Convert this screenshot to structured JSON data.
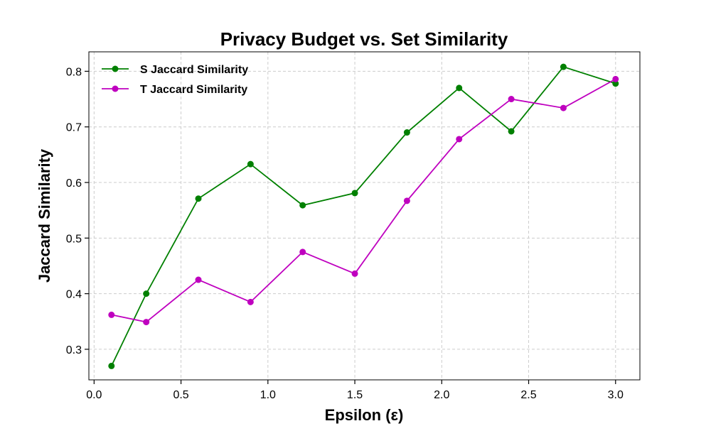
{
  "chart_data": {
    "type": "line",
    "title": "Privacy Budget vs. Set Similarity",
    "xlabel": "Epsilon (ε)",
    "ylabel": "Jaccard Similarity",
    "x": [
      0.1,
      0.3,
      0.6,
      0.9,
      1.2,
      1.5,
      1.8,
      2.1,
      2.4,
      2.7,
      3.0
    ],
    "xlim": [
      -0.03,
      3.14
    ],
    "ylim": [
      0.245,
      0.835
    ],
    "xticks": [
      0.0,
      0.5,
      1.0,
      1.5,
      2.0,
      2.5,
      3.0
    ],
    "xtick_labels": [
      "0.0",
      "0.5",
      "1.0",
      "1.5",
      "2.0",
      "2.5",
      "3.0"
    ],
    "yticks": [
      0.3,
      0.4,
      0.5,
      0.6,
      0.7,
      0.8
    ],
    "ytick_labels": [
      "0.3",
      "0.4",
      "0.5",
      "0.6",
      "0.7",
      "0.8"
    ],
    "grid": true,
    "legend_position": "top-left",
    "series": [
      {
        "name": "S Jaccard Similarity",
        "color": "#008000",
        "values": [
          0.27,
          0.4,
          0.571,
          0.633,
          0.559,
          0.581,
          0.69,
          0.77,
          0.692,
          0.808,
          0.778
        ]
      },
      {
        "name": "T Jaccard Similarity",
        "color": "#bf00bf",
        "values": [
          0.362,
          0.349,
          0.425,
          0.385,
          0.475,
          0.436,
          0.567,
          0.678,
          0.75,
          0.734,
          0.786
        ]
      }
    ]
  }
}
